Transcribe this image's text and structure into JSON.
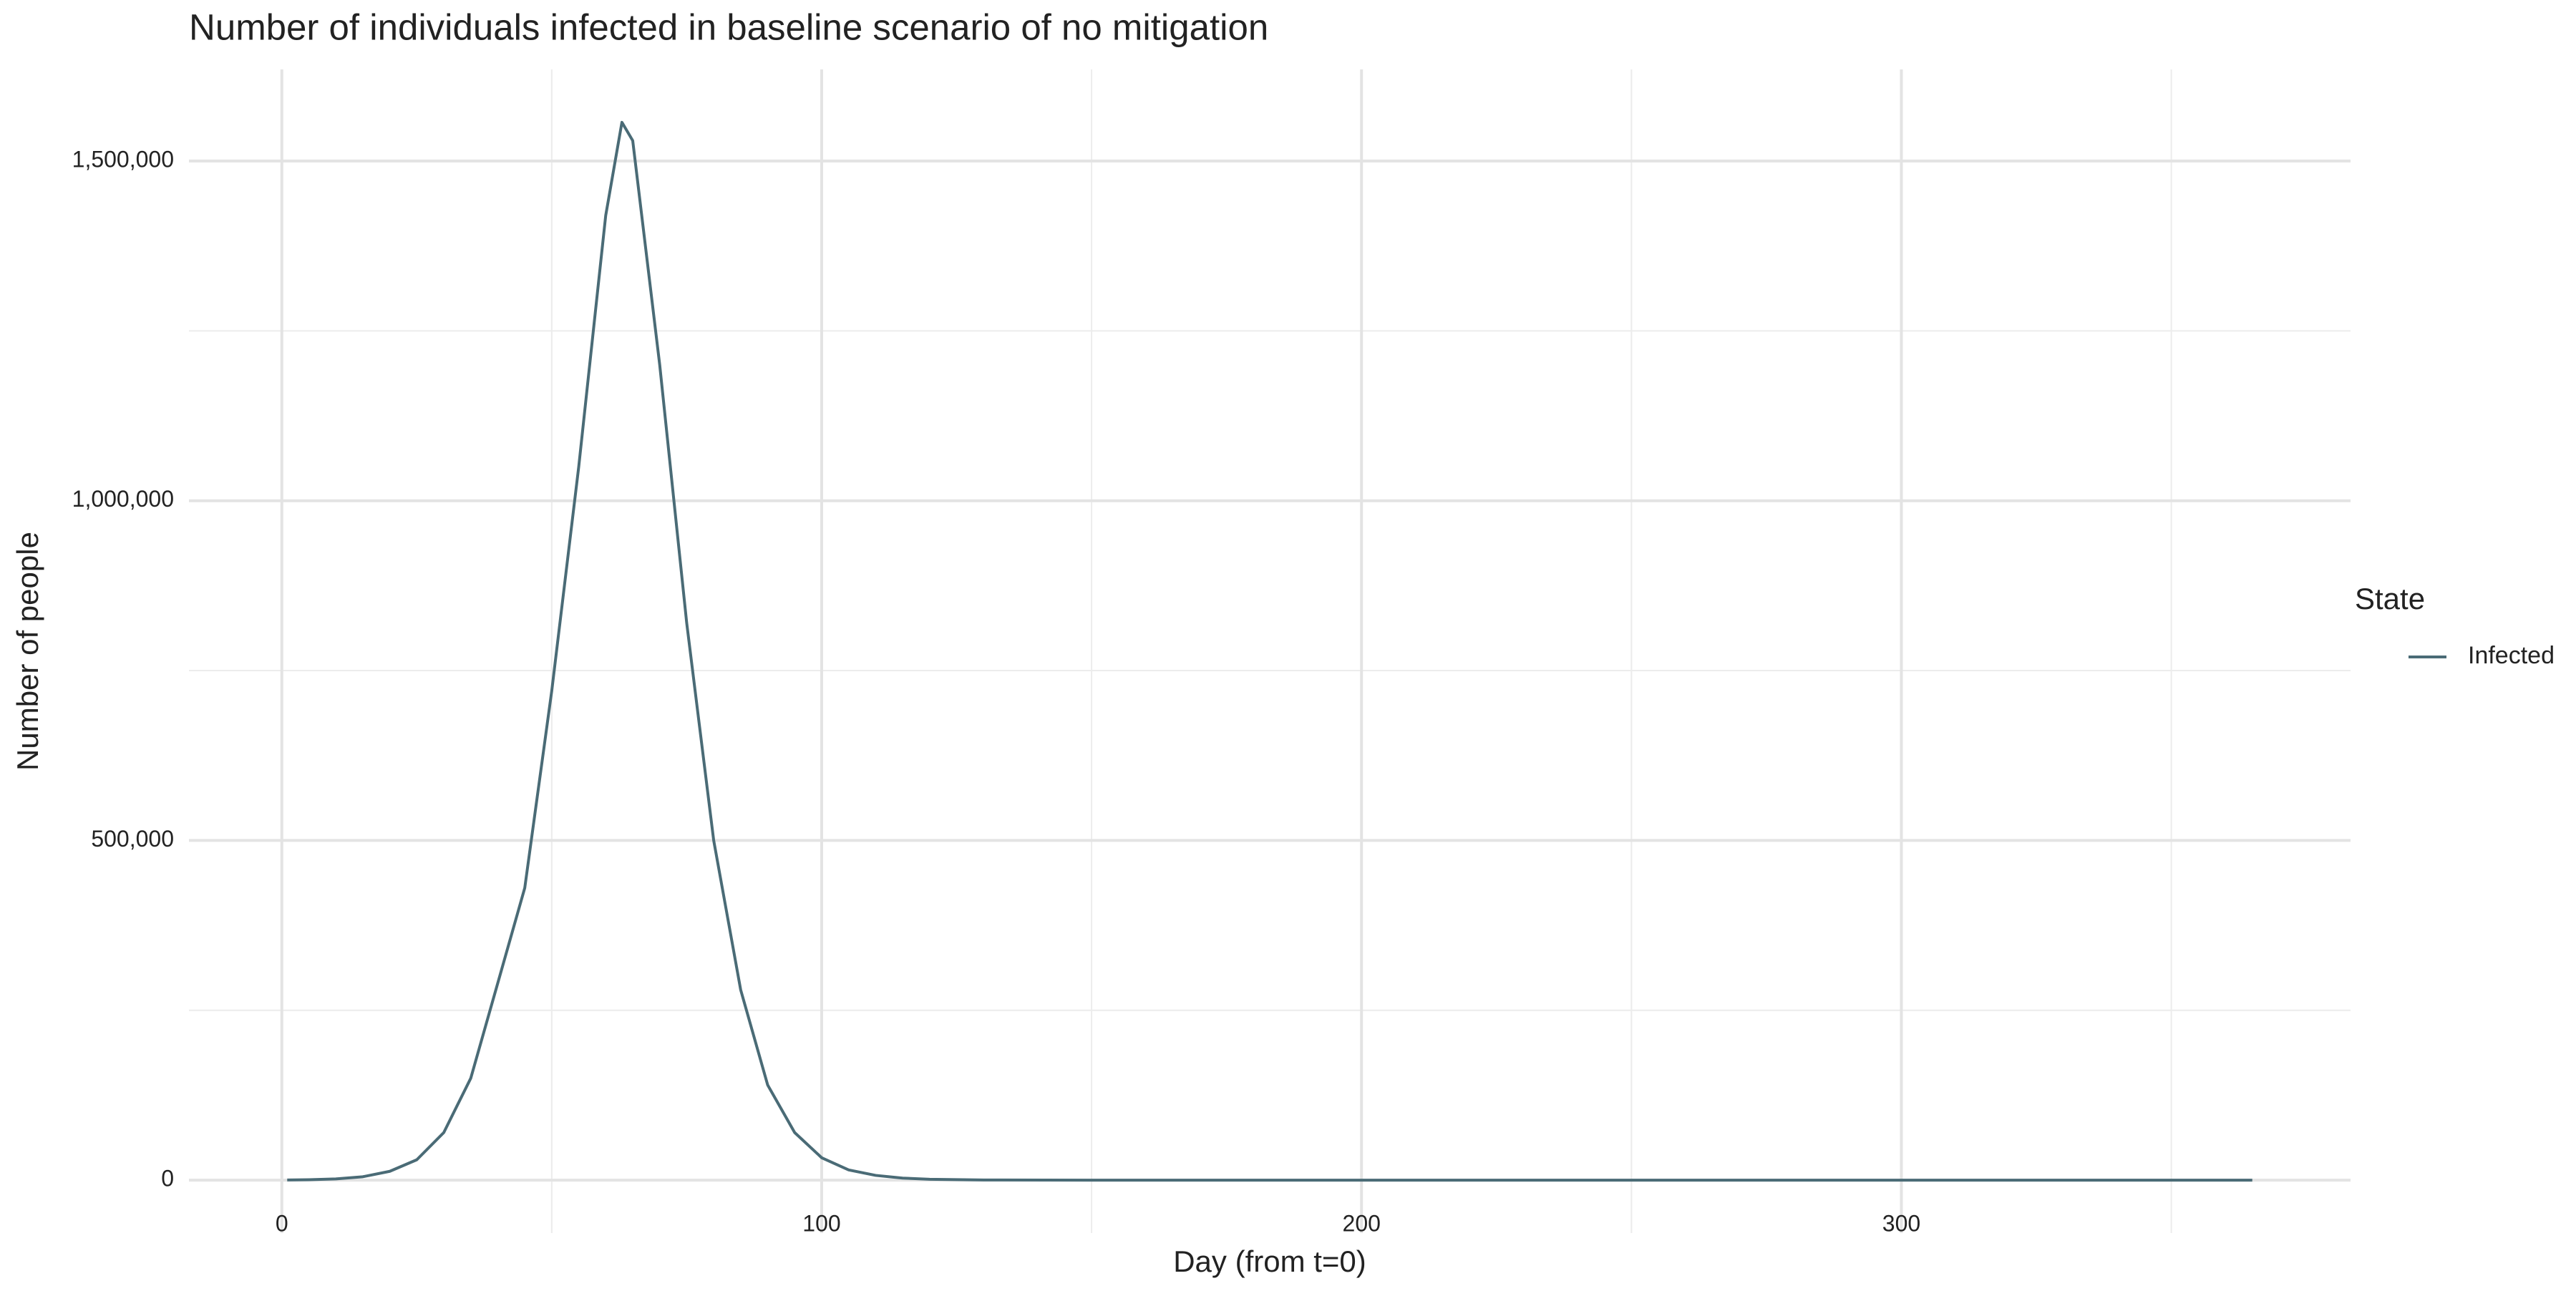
{
  "chart_data": {
    "type": "line",
    "title": "Number of individuals infected in baseline scenario of no mitigation",
    "x_label": "Day (from t=0)",
    "y_label": "Number of people",
    "legend_title": "State",
    "legend_position": "right",
    "grid": true,
    "x": [
      1,
      5,
      10,
      15,
      20,
      25,
      30,
      35,
      40,
      45,
      50,
      55,
      60,
      63,
      65,
      70,
      75,
      80,
      85,
      90,
      95,
      100,
      105,
      110,
      115,
      120,
      130,
      150,
      200,
      250,
      300,
      365
    ],
    "series": [
      {
        "name": "Infected",
        "color": "#4a6b76",
        "values": [
          200,
          600,
          1800,
          5000,
          13000,
          30000,
          70000,
          150000,
          290000,
          430000,
          720000,
          1050000,
          1420000,
          1557000,
          1530000,
          1200000,
          820000,
          500000,
          280000,
          140000,
          70000,
          33000,
          15000,
          7000,
          3000,
          1300,
          250,
          10,
          0,
          0,
          0,
          0
        ]
      }
    ],
    "xlim": [
      -17.2,
      383.2
    ],
    "xticks": [
      0,
      100,
      200,
      300
    ],
    "ylim": [
      -77850,
      1634850
    ],
    "yticks": [
      0,
      {
        "value": 500000,
        "label": "500,000"
      },
      {
        "value": 1000000,
        "label": "1,000,000"
      },
      {
        "value": 1500000,
        "label": "1,500,000"
      }
    ]
  }
}
